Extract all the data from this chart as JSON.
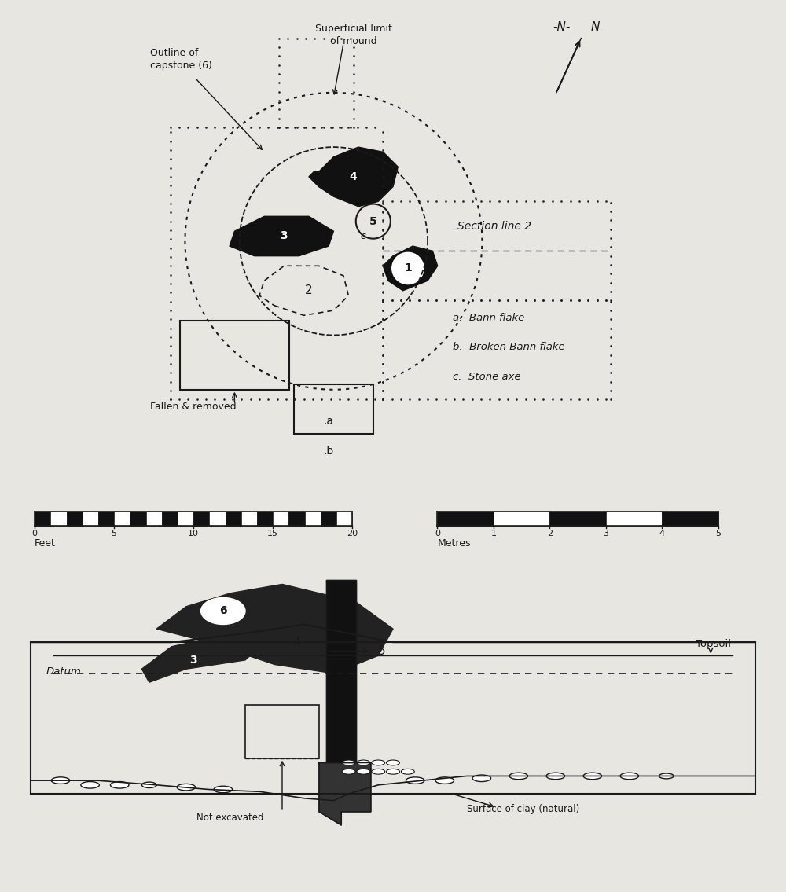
{
  "background_color": "#e8e6e0",
  "line_color": "#1a1a1a",
  "plan_labels": {
    "superficial_limit": "Superficial limit\nof mound",
    "outline_capstone": "Outline of\ncapstone (6)",
    "section_line_2": "Section line 2",
    "fallen_removed": "Fallen & removed",
    "dot_a": ".a",
    "dot_b": ".b",
    "a_label": "a.  Bann flake",
    "b_label": "b.  Broken Bann flake",
    "c_label": "c.  Stone axe"
  },
  "elevation_labels": {
    "datum": "Datum",
    "topsoil": "Topsoil",
    "not_excavated": "Not excavated",
    "surface_clay": "Surface of clay (natural)"
  }
}
